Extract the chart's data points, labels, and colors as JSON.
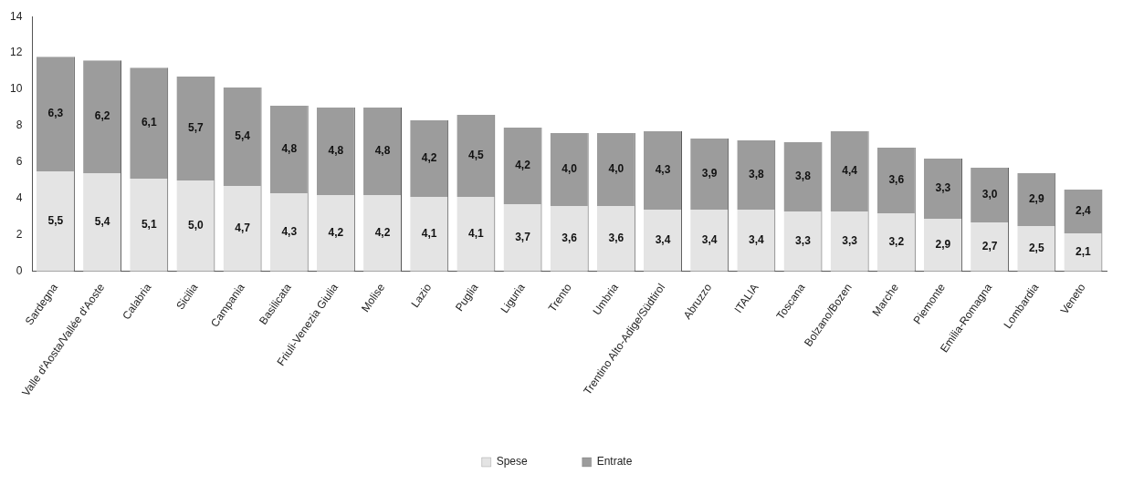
{
  "chart_data": {
    "type": "bar",
    "stacked": true,
    "categories": [
      "Sardegna",
      "Valle d'Aosta/Vallée d'Aoste",
      "Calabria",
      "Sicilia",
      "Campania",
      "Basilicata",
      "Friuli-Venezia Giulia",
      "Molise",
      "Lazio",
      "Puglia",
      "Liguria",
      "Trento",
      "Umbria",
      "Trentino Alto-Adige/Südtirol",
      "Abruzzo",
      "ITALIA",
      "Toscana",
      "Bolzano/Bozen",
      "Marche",
      "Piemonte",
      "Emilia-Romagna",
      "Lombardia",
      "Veneto"
    ],
    "series": [
      {
        "name": "Spese",
        "color": "#e4e4e4",
        "values": [
          5.5,
          5.4,
          5.1,
          5.0,
          4.7,
          4.3,
          4.2,
          4.2,
          4.1,
          4.1,
          3.7,
          3.6,
          3.6,
          3.4,
          3.4,
          3.4,
          3.3,
          3.3,
          3.2,
          2.9,
          2.7,
          2.5,
          2.1
        ],
        "value_labels": [
          "5,5",
          "5,4",
          "5,1",
          "5,0",
          "4,7",
          "4,3",
          "4,2",
          "4,2",
          "4,1",
          "4,1",
          "3,7",
          "3,6",
          "3,6",
          "3,4",
          "3,4",
          "3,4",
          "3,3",
          "3,3",
          "3,2",
          "2,9",
          "2,7",
          "2,5",
          "2,1"
        ]
      },
      {
        "name": "Entrate",
        "color": "#9c9c9c",
        "values": [
          6.3,
          6.2,
          6.1,
          5.7,
          5.4,
          4.8,
          4.8,
          4.8,
          4.2,
          4.5,
          4.2,
          4.0,
          4.0,
          4.3,
          3.9,
          3.8,
          3.8,
          4.4,
          3.6,
          3.3,
          3.0,
          2.9,
          2.4
        ],
        "value_labels": [
          "6,3",
          "6,2",
          "6,1",
          "5,7",
          "5,4",
          "4,8",
          "4,8",
          "4,8",
          "4,2",
          "4,5",
          "4,2",
          "4,0",
          "4,0",
          "4,3",
          "3,9",
          "3,8",
          "3,8",
          "4,4",
          "3,6",
          "3,3",
          "3,0",
          "2,9",
          "2,4"
        ]
      }
    ],
    "ylim": [
      0,
      14
    ],
    "yticks": [
      0,
      2,
      4,
      6,
      8,
      10,
      12,
      14
    ],
    "grid": false,
    "legend": "bottom"
  }
}
